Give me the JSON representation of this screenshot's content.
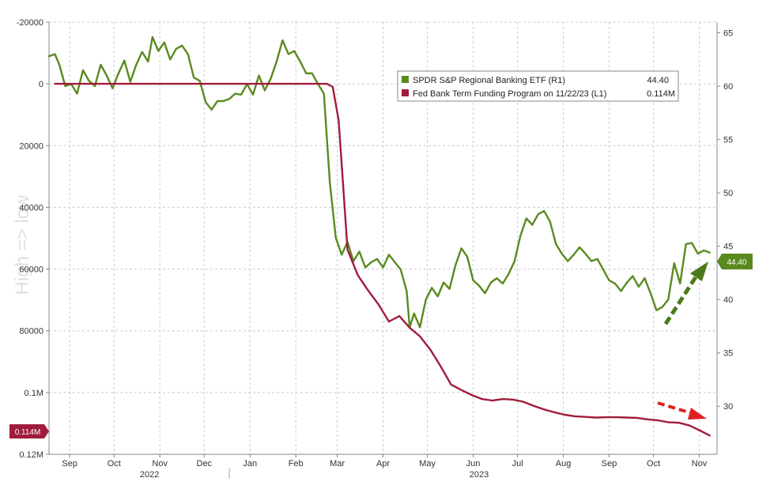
{
  "chart_data": {
    "type": "line",
    "watermark": "High => low",
    "left_axis": {
      "inverted": true,
      "range": [
        -20000,
        120000
      ],
      "ticks": [
        {
          "value": -20000,
          "label": "-20000"
        },
        {
          "value": 0,
          "label": "0"
        },
        {
          "value": 20000,
          "label": "20000"
        },
        {
          "value": 40000,
          "label": "40000"
        },
        {
          "value": 60000,
          "label": "60000"
        },
        {
          "value": 80000,
          "label": "80000"
        },
        {
          "value": 100000,
          "label": "0.1M"
        },
        {
          "value": 120000,
          "label": "0.12M"
        }
      ]
    },
    "right_axis": {
      "range": [
        25.5,
        66
      ],
      "ticks": [
        {
          "value": 65,
          "label": "65"
        },
        {
          "value": 60,
          "label": "60"
        },
        {
          "value": 55,
          "label": "55"
        },
        {
          "value": 50,
          "label": "50"
        },
        {
          "value": 45,
          "label": "45"
        },
        {
          "value": 40,
          "label": "40"
        },
        {
          "value": 35,
          "label": "35"
        },
        {
          "value": 30,
          "label": "30"
        }
      ]
    },
    "x_range": [
      "2022-09-01",
      "2023-11-27"
    ],
    "month_ticks": [
      {
        "date": "2022-09-15",
        "label": "Sep"
      },
      {
        "date": "2022-10-15",
        "label": "Oct"
      },
      {
        "date": "2022-11-15",
        "label": "Nov"
      },
      {
        "date": "2022-12-15",
        "label": "Dec"
      },
      {
        "date": "2023-01-15",
        "label": "Jan"
      },
      {
        "date": "2023-02-15",
        "label": "Feb"
      },
      {
        "date": "2023-03-15",
        "label": "Mar"
      },
      {
        "date": "2023-04-15",
        "label": "Apr"
      },
      {
        "date": "2023-05-15",
        "label": "May"
      },
      {
        "date": "2023-06-15",
        "label": "Jun"
      },
      {
        "date": "2023-07-15",
        "label": "Jul"
      },
      {
        "date": "2023-08-15",
        "label": "Aug"
      },
      {
        "date": "2023-09-15",
        "label": "Sep"
      },
      {
        "date": "2023-10-15",
        "label": "Oct"
      },
      {
        "date": "2023-11-15",
        "label": "Nov"
      }
    ],
    "year_labels": [
      {
        "date": "2022-11-08",
        "label": "2022"
      },
      {
        "date": "2023-06-19",
        "label": "2023"
      }
    ],
    "grid": true,
    "legend_position": "top-right",
    "series": [
      {
        "name": "SPDR S&P Regional Banking ETF (R1)",
        "value_label": "44.40",
        "current_tag": "44.40",
        "axis": "right",
        "color": "#5a8a1f",
        "points": [
          [
            "2022-09-01",
            62.8
          ],
          [
            "2022-09-05",
            63.0
          ],
          [
            "2022-09-08",
            62.0
          ],
          [
            "2022-09-12",
            60.0
          ],
          [
            "2022-09-16",
            60.2
          ],
          [
            "2022-09-20",
            59.3
          ],
          [
            "2022-09-24",
            61.5
          ],
          [
            "2022-09-28",
            60.5
          ],
          [
            "2022-10-02",
            60.0
          ],
          [
            "2022-10-06",
            62.0
          ],
          [
            "2022-10-10",
            61.0
          ],
          [
            "2022-10-14",
            59.8
          ],
          [
            "2022-10-18",
            61.2
          ],
          [
            "2022-10-22",
            62.4
          ],
          [
            "2022-10-26",
            60.4
          ],
          [
            "2022-10-30",
            62.0
          ],
          [
            "2022-11-03",
            63.2
          ],
          [
            "2022-11-07",
            62.3
          ],
          [
            "2022-11-10",
            64.6
          ],
          [
            "2022-11-14",
            63.3
          ],
          [
            "2022-11-18",
            64.1
          ],
          [
            "2022-11-22",
            62.5
          ],
          [
            "2022-11-26",
            63.5
          ],
          [
            "2022-11-30",
            63.8
          ],
          [
            "2022-12-04",
            63.0
          ],
          [
            "2022-12-08",
            60.8
          ],
          [
            "2022-12-12",
            60.5
          ],
          [
            "2022-12-16",
            58.5
          ],
          [
            "2022-12-20",
            57.8
          ],
          [
            "2022-12-24",
            58.6
          ],
          [
            "2022-12-28",
            58.6
          ],
          [
            "2023-01-01",
            58.8
          ],
          [
            "2023-01-05",
            59.3
          ],
          [
            "2023-01-09",
            59.2
          ],
          [
            "2023-01-13",
            60.2
          ],
          [
            "2023-01-17",
            59.2
          ],
          [
            "2023-01-21",
            61.0
          ],
          [
            "2023-01-25",
            59.6
          ],
          [
            "2023-01-29",
            60.7
          ],
          [
            "2023-02-02",
            62.3
          ],
          [
            "2023-02-06",
            64.3
          ],
          [
            "2023-02-10",
            63.0
          ],
          [
            "2023-02-14",
            63.3
          ],
          [
            "2023-02-18",
            62.3
          ],
          [
            "2023-02-22",
            61.2
          ],
          [
            "2023-02-26",
            61.2
          ],
          [
            "2023-03-02",
            60.2
          ],
          [
            "2023-03-06",
            59.3
          ],
          [
            "2023-03-10",
            51.0
          ],
          [
            "2023-03-14",
            45.8
          ],
          [
            "2023-03-18",
            44.2
          ],
          [
            "2023-03-22",
            45.4
          ],
          [
            "2023-03-26",
            43.6
          ],
          [
            "2023-03-30",
            44.5
          ],
          [
            "2023-04-03",
            43.0
          ],
          [
            "2023-04-07",
            43.5
          ],
          [
            "2023-04-11",
            43.8
          ],
          [
            "2023-04-15",
            43.0
          ],
          [
            "2023-04-19",
            44.2
          ],
          [
            "2023-04-23",
            43.5
          ],
          [
            "2023-04-27",
            42.8
          ],
          [
            "2023-05-01",
            40.8
          ],
          [
            "2023-05-03",
            37.4
          ],
          [
            "2023-05-06",
            38.7
          ],
          [
            "2023-05-10",
            37.4
          ],
          [
            "2023-05-14",
            40.0
          ],
          [
            "2023-05-18",
            41.1
          ],
          [
            "2023-05-22",
            40.3
          ],
          [
            "2023-05-26",
            41.6
          ],
          [
            "2023-05-30",
            41.0
          ],
          [
            "2023-06-03",
            43.2
          ],
          [
            "2023-06-07",
            44.8
          ],
          [
            "2023-06-11",
            44.0
          ],
          [
            "2023-06-15",
            41.8
          ],
          [
            "2023-06-19",
            41.3
          ],
          [
            "2023-06-23",
            40.6
          ],
          [
            "2023-06-27",
            41.6
          ],
          [
            "2023-07-01",
            42.0
          ],
          [
            "2023-07-05",
            41.5
          ],
          [
            "2023-07-09",
            42.4
          ],
          [
            "2023-07-13",
            43.6
          ],
          [
            "2023-07-17",
            46.0
          ],
          [
            "2023-07-21",
            47.6
          ],
          [
            "2023-07-25",
            47.0
          ],
          [
            "2023-07-29",
            48.0
          ],
          [
            "2023-08-02",
            48.3
          ],
          [
            "2023-08-06",
            47.3
          ],
          [
            "2023-08-10",
            45.2
          ],
          [
            "2023-08-14",
            44.3
          ],
          [
            "2023-08-18",
            43.6
          ],
          [
            "2023-08-22",
            44.2
          ],
          [
            "2023-08-26",
            44.9
          ],
          [
            "2023-08-30",
            44.3
          ],
          [
            "2023-09-03",
            43.6
          ],
          [
            "2023-09-07",
            43.8
          ],
          [
            "2023-09-11",
            42.8
          ],
          [
            "2023-09-15",
            41.8
          ],
          [
            "2023-09-19",
            41.5
          ],
          [
            "2023-09-23",
            40.8
          ],
          [
            "2023-09-27",
            41.6
          ],
          [
            "2023-10-01",
            42.2
          ],
          [
            "2023-10-05",
            41.2
          ],
          [
            "2023-10-09",
            42.0
          ],
          [
            "2023-10-13",
            40.6
          ],
          [
            "2023-10-17",
            39.0
          ],
          [
            "2023-10-21",
            39.3
          ],
          [
            "2023-10-25",
            40.0
          ],
          [
            "2023-10-29",
            43.4
          ],
          [
            "2023-11-02",
            41.5
          ],
          [
            "2023-11-06",
            45.2
          ],
          [
            "2023-11-10",
            45.3
          ],
          [
            "2023-11-14",
            44.3
          ],
          [
            "2023-11-18",
            44.6
          ],
          [
            "2023-11-22",
            44.4
          ]
        ]
      },
      {
        "name": "Fed Bank Term Funding Program on 11/22/23 (L1)",
        "value_label": "0.114M",
        "current_tag": "0.114M",
        "axis": "left",
        "color": "#a01c3c",
        "points": [
          [
            "2022-09-05",
            0
          ],
          [
            "2023-03-08",
            0
          ],
          [
            "2023-03-12",
            1000
          ],
          [
            "2023-03-16",
            11900
          ],
          [
            "2023-03-22",
            53700
          ],
          [
            "2023-03-29",
            62000
          ],
          [
            "2023-04-05",
            67000
          ],
          [
            "2023-04-12",
            71500
          ],
          [
            "2023-04-19",
            77000
          ],
          [
            "2023-04-26",
            75200
          ],
          [
            "2023-05-03",
            79000
          ],
          [
            "2023-05-10",
            81800
          ],
          [
            "2023-05-17",
            86100
          ],
          [
            "2023-05-24",
            91500
          ],
          [
            "2023-05-31",
            97400
          ],
          [
            "2023-06-07",
            99200
          ],
          [
            "2023-06-14",
            100800
          ],
          [
            "2023-06-21",
            102100
          ],
          [
            "2023-06-28",
            102600
          ],
          [
            "2023-07-05",
            102100
          ],
          [
            "2023-07-12",
            102300
          ],
          [
            "2023-07-19",
            103000
          ],
          [
            "2023-07-26",
            104300
          ],
          [
            "2023-08-02",
            105500
          ],
          [
            "2023-08-09",
            106400
          ],
          [
            "2023-08-16",
            107200
          ],
          [
            "2023-08-23",
            107700
          ],
          [
            "2023-08-30",
            107900
          ],
          [
            "2023-09-06",
            108100
          ],
          [
            "2023-09-13",
            108000
          ],
          [
            "2023-09-20",
            108000
          ],
          [
            "2023-09-27",
            108100
          ],
          [
            "2023-10-04",
            108200
          ],
          [
            "2023-10-11",
            108700
          ],
          [
            "2023-10-18",
            109000
          ],
          [
            "2023-10-25",
            109600
          ],
          [
            "2023-11-01",
            109800
          ],
          [
            "2023-11-08",
            110600
          ],
          [
            "2023-11-15",
            112200
          ],
          [
            "2023-11-22",
            113900
          ]
        ]
      }
    ]
  }
}
